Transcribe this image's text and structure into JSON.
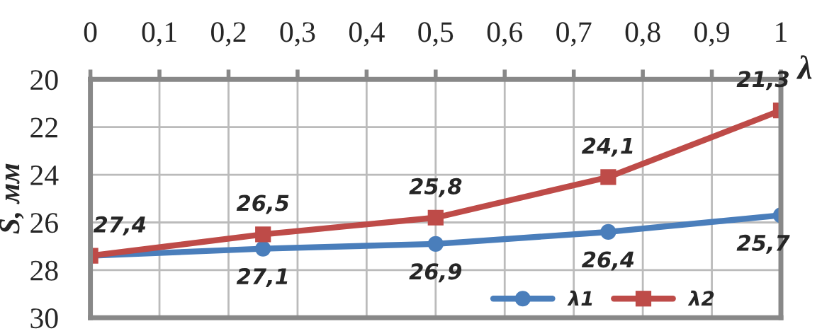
{
  "chart_data": {
    "type": "line",
    "xlabel": "λ",
    "ylabel": "S, мм",
    "x": [
      0,
      0.25,
      0.5,
      0.75,
      1
    ],
    "series": [
      {
        "name": "λ1",
        "color": "#4a7ebb",
        "values": [
          27.4,
          27.1,
          26.9,
          26.4,
          25.7
        ],
        "value_labels": [
          null,
          "27,1",
          "26,9",
          "26,4",
          "25,7"
        ],
        "marker": "circle"
      },
      {
        "name": "λ2",
        "color": "#be4b48",
        "values": [
          27.4,
          26.5,
          25.8,
          24.1,
          21.3
        ],
        "value_labels": [
          "27,4",
          "26,5",
          "25,8",
          "24,1",
          "21,3"
        ],
        "marker": "square"
      }
    ],
    "xlim": [
      0,
      1
    ],
    "xticks": [
      0,
      {
        "value": 0.1,
        "label": "0,1"
      },
      {
        "value": 0.2,
        "label": "0,2"
      },
      {
        "value": 0.3,
        "label": "0,3"
      },
      {
        "value": 0.4,
        "label": "0,4"
      },
      {
        "value": 0.5,
        "label": "0,5"
      },
      {
        "value": 0.6,
        "label": "0,6"
      },
      {
        "value": 0.7,
        "label": "0,7"
      },
      {
        "value": 0.8,
        "label": "0,8"
      },
      {
        "value": 0.9,
        "label": "0,9"
      },
      1
    ],
    "ylim": [
      30,
      20
    ],
    "yticks": [
      20,
      22,
      24,
      26,
      28,
      30
    ],
    "grid": true,
    "legend": "bottom right",
    "line_style": "solid"
  }
}
